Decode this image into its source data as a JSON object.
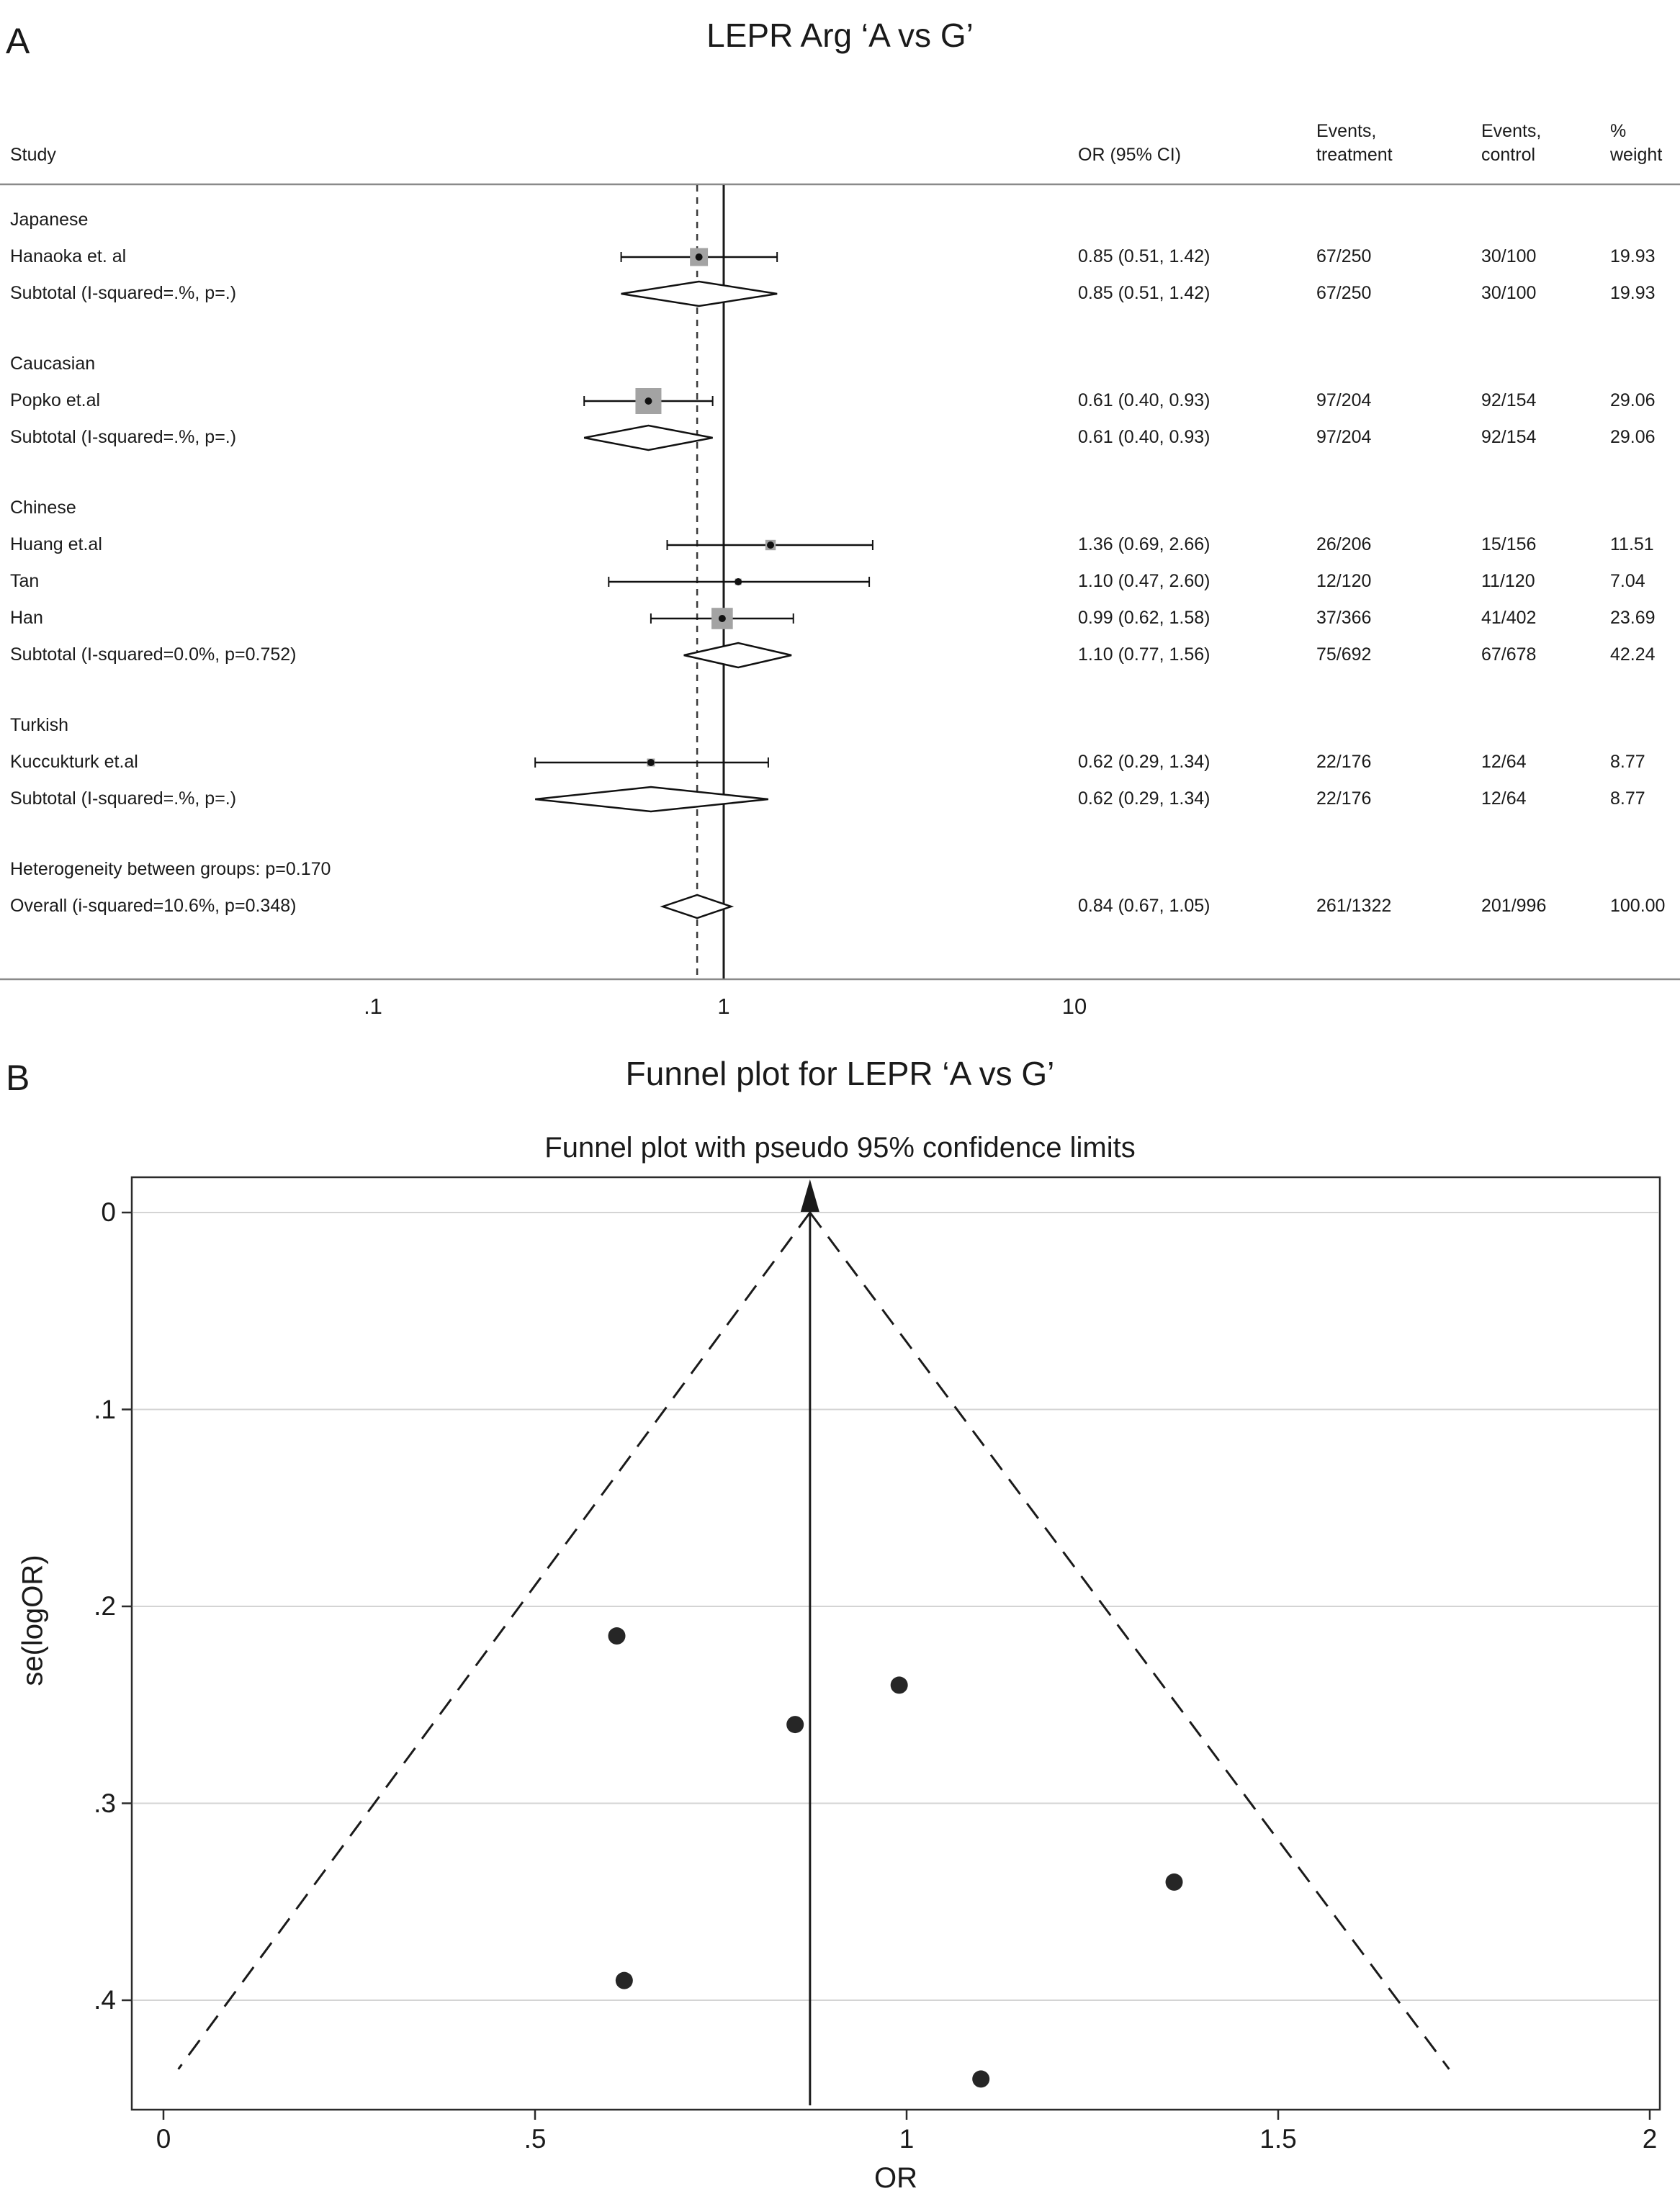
{
  "chart_data": [
    {
      "type": "forest",
      "panel_label": "A",
      "title": "LEPR Arg ‘A vs G’",
      "columns": {
        "study": "Study",
        "or_ci": "OR (95% CI)",
        "events_treatment": "Events,\ntreatment",
        "events_control": "Events,\ncontrol",
        "weight": "%\nweight"
      },
      "x_scale": "log",
      "x_ticks": [
        {
          "value": 0.1,
          "label": ".1"
        },
        {
          "value": 1,
          "label": "1"
        },
        {
          "value": 10,
          "label": "10"
        }
      ],
      "null_line_or": 1,
      "pooled_line_or": 0.84,
      "rows": [
        {
          "kind": "group",
          "label": "Japanese"
        },
        {
          "kind": "study",
          "label": "Hanaoka et. al",
          "or": 0.85,
          "lo": 0.51,
          "hi": 1.42,
          "or_ci": "0.85 (0.51, 1.42)",
          "events_treatment": "67/250",
          "events_control": "30/100",
          "weight": 19.93,
          "weight_text": "19.93"
        },
        {
          "kind": "subtotal",
          "label": "Subtotal (I-squared=.%, p=.)",
          "or": 0.85,
          "lo": 0.51,
          "hi": 1.42,
          "or_ci": "0.85 (0.51, 1.42)",
          "events_treatment": "67/250",
          "events_control": "30/100",
          "weight_text": "19.93"
        },
        {
          "kind": "spacer"
        },
        {
          "kind": "group",
          "label": "Caucasian"
        },
        {
          "kind": "study",
          "label": "Popko et.al",
          "or": 0.61,
          "lo": 0.4,
          "hi": 0.93,
          "or_ci": "0.61 (0.40, 0.93)",
          "events_treatment": "97/204",
          "events_control": "92/154",
          "weight": 29.06,
          "weight_text": "29.06"
        },
        {
          "kind": "subtotal",
          "label": "Subtotal (I-squared=.%, p=.)",
          "or": 0.61,
          "lo": 0.4,
          "hi": 0.93,
          "or_ci": "0.61 (0.40, 0.93)",
          "events_treatment": "97/204",
          "events_control": "92/154",
          "weight_text": "29.06"
        },
        {
          "kind": "spacer"
        },
        {
          "kind": "group",
          "label": "Chinese"
        },
        {
          "kind": "study",
          "label": "Huang et.al",
          "or": 1.36,
          "lo": 0.69,
          "hi": 2.66,
          "or_ci": "1.36 (0.69, 2.66)",
          "events_treatment": "26/206",
          "events_control": "15/156",
          "weight": 11.51,
          "weight_text": "11.51"
        },
        {
          "kind": "study",
          "label": "Tan",
          "or": 1.1,
          "lo": 0.47,
          "hi": 2.6,
          "or_ci": "1.10 (0.47, 2.60)",
          "events_treatment": "12/120",
          "events_control": "11/120",
          "weight": 7.04,
          "weight_text": "7.04"
        },
        {
          "kind": "study",
          "label": "Han",
          "or": 0.99,
          "lo": 0.62,
          "hi": 1.58,
          "or_ci": "0.99 (0.62, 1.58)",
          "events_treatment": "37/366",
          "events_control": "41/402",
          "weight": 23.69,
          "weight_text": "23.69"
        },
        {
          "kind": "subtotal",
          "label": "Subtotal (I-squared=0.0%, p=0.752)",
          "or": 1.1,
          "lo": 0.77,
          "hi": 1.56,
          "or_ci": "1.10 (0.77, 1.56)",
          "events_treatment": "75/692",
          "events_control": "67/678",
          "weight_text": "42.24"
        },
        {
          "kind": "spacer"
        },
        {
          "kind": "group",
          "label": "Turkish"
        },
        {
          "kind": "study",
          "label": "Kuccukturk et.al",
          "or": 0.62,
          "lo": 0.29,
          "hi": 1.34,
          "or_ci": "0.62 (0.29, 1.34)",
          "events_treatment": "22/176",
          "events_control": "12/64",
          "weight": 8.77,
          "weight_text": "8.77"
        },
        {
          "kind": "subtotal",
          "label": "Subtotal (I-squared=.%, p=.)",
          "or": 0.62,
          "lo": 0.29,
          "hi": 1.34,
          "or_ci": "0.62 (0.29, 1.34)",
          "events_treatment": "22/176",
          "events_control": "12/64",
          "weight_text": "8.77"
        },
        {
          "kind": "spacer"
        },
        {
          "kind": "note",
          "label": "Heterogeneity between groups: p=0.170"
        },
        {
          "kind": "overall",
          "label": "Overall (i-squared=10.6%, p=0.348)",
          "or": 0.84,
          "lo": 0.67,
          "hi": 1.05,
          "or_ci": "0.84 (0.67, 1.05)",
          "events_treatment": "261/1322",
          "events_control": "201/996",
          "weight_text": "100.00"
        }
      ]
    },
    {
      "type": "scatter",
      "panel_label": "B",
      "title": "Funnel plot for LEPR ‘A vs G’",
      "subtitle": "Funnel plot with pseudo 95% confidence limits",
      "xlabel": "OR",
      "ylabel": "se(logOR)",
      "xlim": [
        0,
        2
      ],
      "ylim_se": [
        0,
        0.456
      ],
      "grid": true,
      "legend": "none",
      "x_ticks": [
        {
          "value": 0,
          "label": "0"
        },
        {
          "value": 0.5,
          "label": ".5"
        },
        {
          "value": 1,
          "label": "1"
        },
        {
          "value": 1.5,
          "label": "1.5"
        },
        {
          "value": 2,
          "label": "2"
        }
      ],
      "y_ticks": [
        {
          "value": 0,
          "label": "0"
        },
        {
          "value": 0.1,
          "label": ".1"
        },
        {
          "value": 0.2,
          "label": ".2"
        },
        {
          "value": 0.3,
          "label": ".3"
        },
        {
          "value": 0.4,
          "label": ".4"
        }
      ],
      "points": [
        {
          "or": 0.61,
          "se": 0.215
        },
        {
          "or": 0.85,
          "se": 0.26
        },
        {
          "or": 0.99,
          "se": 0.24
        },
        {
          "or": 1.36,
          "se": 0.34
        },
        {
          "or": 0.62,
          "se": 0.39
        },
        {
          "or": 1.1,
          "se": 0.44
        }
      ],
      "center_line_or": 0.87,
      "funnel_limits": {
        "apex_or": 0.87,
        "apex_se": 0,
        "left_end_or": 0.02,
        "right_end_or": 1.73,
        "end_se": 0.435
      },
      "colors": {
        "point": "#262626",
        "grid": "#d4d4d4",
        "line": "#1a1a1a"
      }
    }
  ]
}
